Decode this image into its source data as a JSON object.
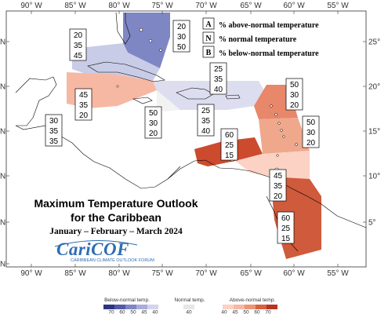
{
  "map": {
    "title_line1": "Maximum Temperature Outlook",
    "title_line2": "for the Caribbean",
    "period": "January – February – March 2024",
    "logo_text": "CariCOF",
    "logo_subtitle": "CARIBBEAN CLIMATE OUTLOOK FORUM",
    "lon_ticks": [
      "90° W",
      "85° W",
      "80° W",
      "75° W",
      "70° W",
      "65° W",
      "60° W",
      "55° W"
    ],
    "lat_ticks_right": [
      "25°",
      "20°",
      "15°",
      "10°",
      "5°"
    ],
    "lat_ticks_left": [
      "N",
      "N",
      "N",
      "N",
      "N",
      "N"
    ],
    "key": [
      {
        "letter": "A",
        "text": "% above-normal temperature"
      },
      {
        "letter": "N",
        "text": "% normal temperature"
      },
      {
        "letter": "B",
        "text": "% below-normal temperature"
      }
    ],
    "regions": [
      {
        "id": "bahamas",
        "A": "20",
        "N": "30",
        "B": "50",
        "color": "#7f86c4"
      },
      {
        "id": "cuba-west",
        "A": "20",
        "N": "35",
        "B": "45",
        "color": "#c9cce6"
      },
      {
        "id": "jamaica-west",
        "A": "45",
        "N": "35",
        "B": "20",
        "color": "#f6b8a3"
      },
      {
        "id": "jamaica",
        "A": "50",
        "N": "30",
        "B": "20",
        "color": "#f2f2f2"
      },
      {
        "id": "hispaniola-north",
        "A": "25",
        "N": "35",
        "B": "40",
        "color": "#dcdef0"
      },
      {
        "id": "hispaniola-south",
        "A": "25",
        "N": "35",
        "B": "40",
        "color": "#dcdef0"
      },
      {
        "id": "belize",
        "A": "30",
        "N": "35",
        "B": "35",
        "color": "#ffffff"
      },
      {
        "id": "leewards",
        "A": "50",
        "N": "30",
        "B": "20",
        "color": "#e8876a"
      },
      {
        "id": "windwards",
        "A": "50",
        "N": "30",
        "B": "20",
        "color": "#f0a88c"
      },
      {
        "id": "caribbean-south",
        "A": "60",
        "N": "25",
        "B": "15",
        "color": "#cc4a2e"
      },
      {
        "id": "trinidad",
        "A": "45",
        "N": "35",
        "B": "20",
        "color": "#fbd2c3"
      },
      {
        "id": "guianas",
        "A": "60",
        "N": "25",
        "B": "15",
        "color": "#cf5a3c"
      }
    ],
    "colorbar": {
      "below_label": "Below-normal temp.",
      "normal_label": "Normal temp.",
      "above_label": "Above-normal temp.",
      "below_ticks": [
        "70",
        "60",
        "50",
        "45",
        "40"
      ],
      "normal_ticks": [
        "40"
      ],
      "above_ticks": [
        "40",
        "45",
        "50",
        "60",
        "70"
      ],
      "below_colors": [
        "#2b3582",
        "#525ba8",
        "#7f86c4",
        "#a9adda",
        "#d2d4ec"
      ],
      "normal_colors": [
        "#e6e6e6"
      ],
      "above_colors": [
        "#fbd2c3",
        "#f6b8a3",
        "#ef9474",
        "#d9603f",
        "#b8341f"
      ]
    }
  }
}
